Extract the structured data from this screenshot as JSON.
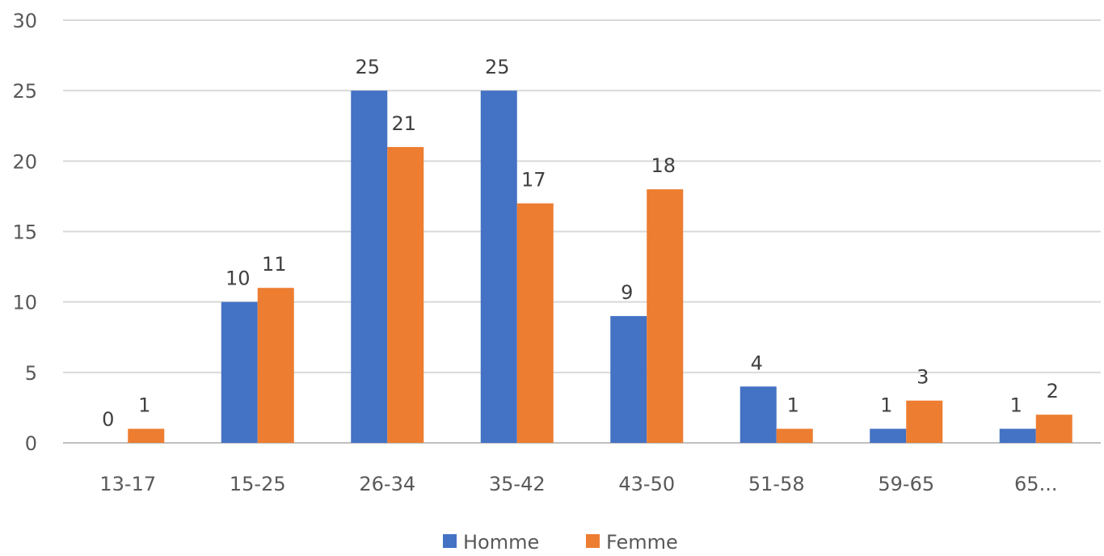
{
  "chart_data": {
    "type": "bar",
    "title": "",
    "xlabel": "",
    "ylabel": "",
    "categories": [
      "13-17",
      "15-25",
      "26-34",
      "35-42",
      "43-50",
      "51-58",
      "59-65",
      "65..."
    ],
    "series": [
      {
        "name": "Homme",
        "color": "#4472C4",
        "values": [
          0,
          10,
          25,
          25,
          9,
          4,
          1,
          1
        ]
      },
      {
        "name": "Femme",
        "color": "#ED7D31",
        "values": [
          1,
          11,
          21,
          17,
          18,
          1,
          3,
          2
        ]
      }
    ],
    "ylim": [
      0,
      30
    ],
    "yticks": [
      0,
      5,
      10,
      15,
      20,
      25,
      30
    ],
    "grid": true,
    "legend_position": "bottom"
  }
}
